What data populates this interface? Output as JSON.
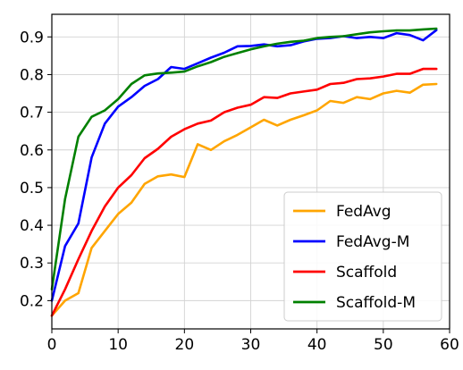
{
  "chart_data": {
    "type": "line",
    "title": "",
    "xlabel": "",
    "ylabel": "",
    "xlim": [
      0,
      60
    ],
    "ylim": [
      0.125,
      0.96
    ],
    "xticks": [
      0,
      10,
      20,
      30,
      40,
      50,
      60
    ],
    "yticks": [
      0.2,
      0.3,
      0.4,
      0.5,
      0.6,
      0.7,
      0.8,
      0.9
    ],
    "grid": true,
    "legend_position": "lower-right",
    "x": [
      0,
      2,
      4,
      6,
      8,
      10,
      12,
      14,
      16,
      18,
      20,
      22,
      24,
      26,
      28,
      30,
      32,
      34,
      36,
      38,
      40,
      42,
      44,
      46,
      48,
      50,
      52,
      54,
      56,
      58
    ],
    "series": [
      {
        "name": "FedAvg",
        "color": "#ffa500",
        "values": [
          0.16,
          0.2,
          0.22,
          0.34,
          0.385,
          0.43,
          0.46,
          0.51,
          0.53,
          0.535,
          0.528,
          0.615,
          0.6,
          0.623,
          0.64,
          0.66,
          0.68,
          0.665,
          0.68,
          0.692,
          0.705,
          0.73,
          0.725,
          0.74,
          0.735,
          0.75,
          0.757,
          0.752,
          0.773,
          0.775
        ]
      },
      {
        "name": "FedAvg-M",
        "color": "#0000ff",
        "values": [
          0.2,
          0.345,
          0.405,
          0.58,
          0.67,
          0.715,
          0.74,
          0.77,
          0.788,
          0.82,
          0.815,
          0.83,
          0.845,
          0.858,
          0.875,
          0.876,
          0.88,
          0.875,
          0.878,
          0.888,
          0.895,
          0.897,
          0.902,
          0.897,
          0.9,
          0.897,
          0.91,
          0.905,
          0.891,
          0.918
        ]
      },
      {
        "name": "Scaffold",
        "color": "#ff0000",
        "values": [
          0.16,
          0.23,
          0.31,
          0.385,
          0.45,
          0.5,
          0.533,
          0.578,
          0.603,
          0.635,
          0.655,
          0.67,
          0.678,
          0.7,
          0.712,
          0.72,
          0.74,
          0.738,
          0.75,
          0.755,
          0.76,
          0.775,
          0.778,
          0.788,
          0.79,
          0.795,
          0.802,
          0.802,
          0.815,
          0.815
        ]
      },
      {
        "name": "Scaffold-M",
        "color": "#008000",
        "values": [
          0.23,
          0.47,
          0.635,
          0.688,
          0.705,
          0.735,
          0.775,
          0.798,
          0.803,
          0.805,
          0.808,
          0.822,
          0.833,
          0.847,
          0.857,
          0.867,
          0.875,
          0.882,
          0.887,
          0.89,
          0.897,
          0.9,
          0.902,
          0.907,
          0.912,
          0.915,
          0.917,
          0.917,
          0.92,
          0.922
        ]
      }
    ]
  }
}
